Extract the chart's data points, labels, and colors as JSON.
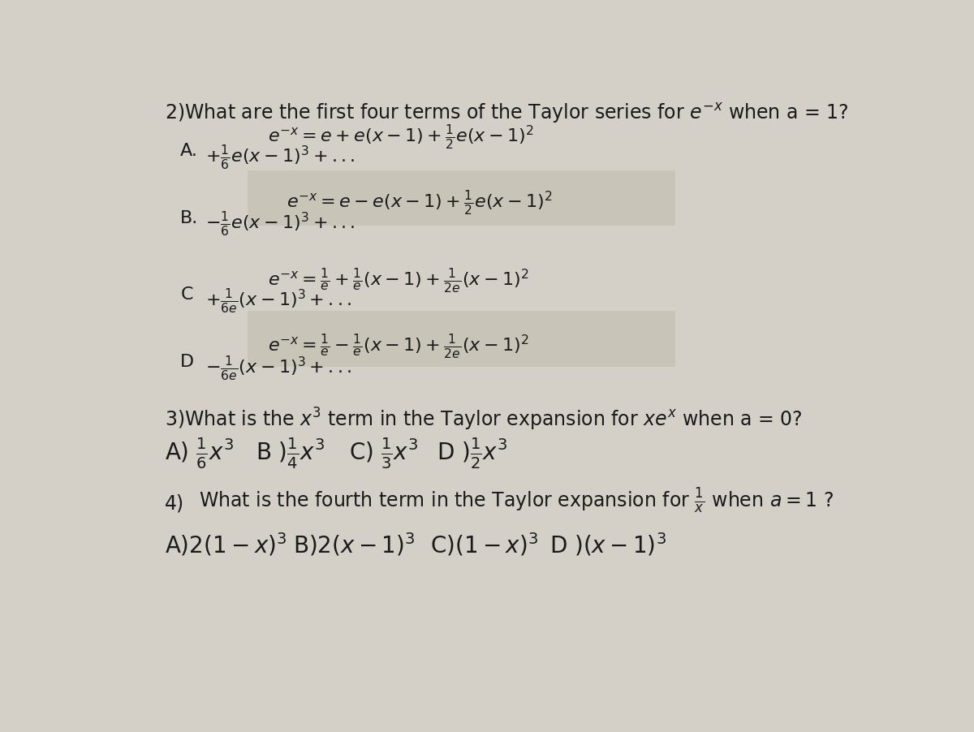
{
  "bg_color": "#d4d0c8",
  "text_color": "#1a1a1a",
  "fig_width": 12.0,
  "fig_height": 9.03,
  "q2_title": "2)What are the first four terms of the Taylor series for $e^{-x}$ when a = 1?",
  "q2_A_line1": "$e^{-x} = e + e(x-1) + \\frac{1}{2}e(x-1)^2$",
  "q2_A_label": "A.",
  "q2_A_line2": "$+\\frac{1}{6}e(x-1)^3 + ...$",
  "q2_B_line1": "$e^{-x} = e - e(x-1) + \\frac{1}{2}e(x-1)^2$",
  "q2_B_label": "B.",
  "q2_B_line2": "$-\\frac{1}{6}e(x-1)^3 + ...$",
  "q2_C_line1": "$e^{-x} = \\frac{1}{e} + \\frac{1}{e}(x-1) + \\frac{1}{2e}(x-1)^2$",
  "q2_C_label": "C",
  "q2_C_line2": "$+\\frac{1}{6e}(x-1)^3 + ...$",
  "q2_D_line1": "$e^{-x} = \\frac{1}{e} - \\frac{1}{e}(x-1) + \\frac{1}{2e}(x-1)^2$",
  "q2_D_label": "D",
  "q2_D_line2": "$-\\frac{1}{6e}(x-1)^3 + ...$",
  "q3_title": "3)What is the $x^3$ term in the Taylor expansion for $xe^x$ when a = 0?",
  "q3_A": "A) $\\frac{1}{6}x^3$",
  "q3_B": "B )$\\frac{1}{4}x^3$",
  "q3_C": "C) $\\frac{1}{3}x^3$",
  "q3_D": "D )$\\frac{1}{2}x^3$",
  "q4_num": "4)",
  "q4_title": "What is the fourth term in the Taylor expansion for $\\frac{1}{x}$ when $a = 1$ ?",
  "q4_A": "A)$2(1-x)^3$",
  "q4_B": "B)$2(x-1)^3$",
  "q4_C": "C)$(1-x)^3$",
  "q4_D": "D )$(x-1)^3$",
  "highlight_b_color": "#c8c4b8",
  "highlight_d_color": "#c8c4b8"
}
